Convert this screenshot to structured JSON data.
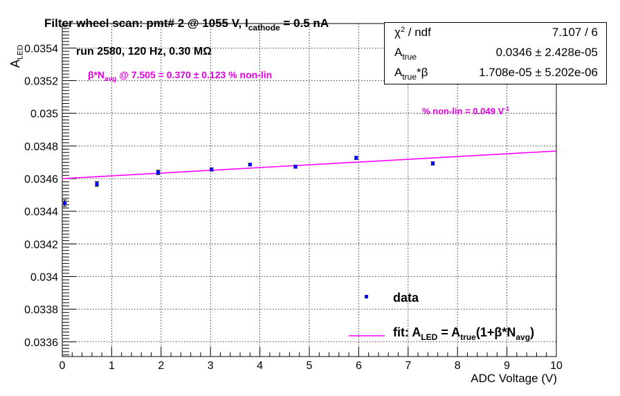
{
  "header": {
    "title_part1": "Filter wheel scan: pmt#   2 @  1055 V, I",
    "title_sub": "cathode",
    "title_part2": " = 0.5 nA",
    "run_info": "run 2580, 120 Hz, 0.30 MΩ"
  },
  "annotations": {
    "nonlin_point_prefix": "β*N",
    "nonlin_point_sub": "avg",
    "nonlin_point_suffix": " @ 7.505 = 0.370 ± 0.123 % non-lin",
    "nonlin_rate": "% non-lin = 0.049 V",
    "nonlin_rate_sup": "-1"
  },
  "stats_box": {
    "rows": [
      {
        "label": "χ",
        "label_sup": "2",
        "label_tail": " / ndf",
        "value": "7.107 / 6"
      },
      {
        "label": "A",
        "label_sub": "true",
        "value": "0.0346 ± 2.428e-05"
      },
      {
        "label": "A",
        "label_sub": "true",
        "label_tail": "*β",
        "value": "1.708e-05 ± 5.202e-06"
      }
    ]
  },
  "legend": {
    "data_label": "data",
    "fit_label_prefix": "fit: A",
    "fit_sub1": "LED",
    "fit_mid": " = A",
    "fit_sub2": "true",
    "fit_mid2": "(1+β*N",
    "fit_sub3": "avg",
    "fit_end": ")"
  },
  "colors": {
    "data": "#0000ff",
    "fit": "#ff00ff",
    "annotation": "#e000e0"
  },
  "chart_data": {
    "type": "scatter",
    "title": "Filter wheel scan: pmt#   2 @  1055 V, I_cathode = 0.5 nA",
    "xlabel": "ADC Voltage (V)",
    "ylabel_main": "A",
    "ylabel_sub": "LED",
    "xlim": [
      0,
      10
    ],
    "ylim": [
      0.03351,
      0.03555
    ],
    "x_ticks": [
      0,
      1,
      2,
      3,
      4,
      5,
      6,
      7,
      8,
      9,
      10
    ],
    "y_ticks": [
      0.0336,
      0.0338,
      0.034,
      0.0342,
      0.0344,
      0.0346,
      0.0348,
      0.035,
      0.0352,
      0.0354
    ],
    "y_tick_labels": [
      "0.0336",
      "0.0338",
      "0.034",
      "0.0342",
      "0.0344",
      "0.0346",
      "0.0348",
      "0.035",
      "0.0352",
      "0.0354"
    ],
    "grid": true,
    "series": [
      {
        "name": "data",
        "x": [
          0.05,
          0.7,
          1.94,
          3.02,
          3.8,
          4.72,
          5.95,
          7.5
        ],
        "y": [
          0.03445,
          0.034567,
          0.034638,
          0.034656,
          0.034686,
          0.034673,
          0.034727,
          0.034693
        ],
        "yerr": [
          2e-05,
          1.4e-05,
          1.3e-05,
          1e-05,
          8e-06,
          9e-06,
          1e-05,
          1e-05
        ]
      },
      {
        "name": "fit",
        "type": "line",
        "x": [
          0,
          10
        ],
        "y": [
          0.0346,
          0.034769
        ]
      }
    ],
    "legend_position": "bottom-right"
  }
}
